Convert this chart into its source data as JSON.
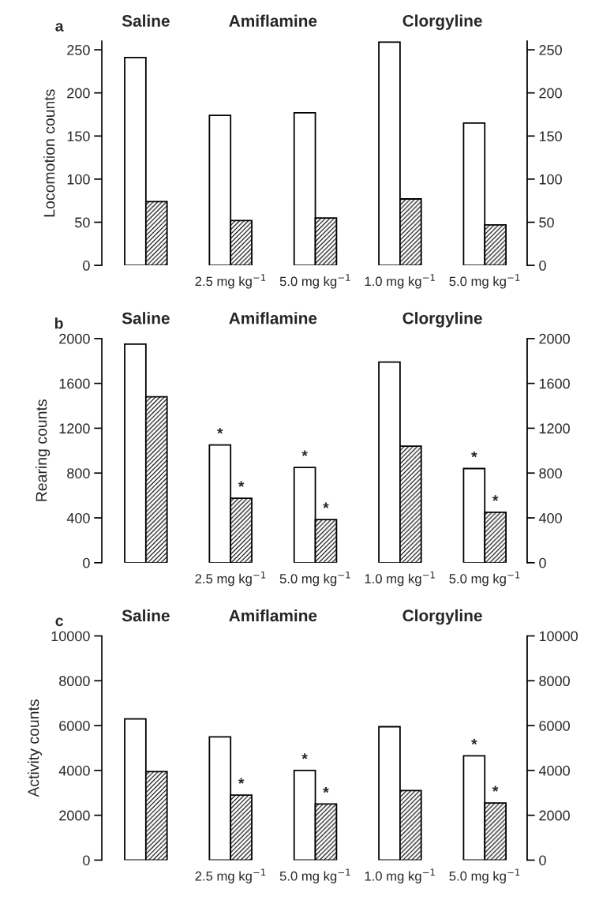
{
  "chart_data": [
    {
      "type": "bar",
      "title": "a",
      "ylabel": "Locomotion counts",
      "categories": [
        null,
        "2.5 mg kg$^{−1}$",
        "5.0 mg kg$^{−1}$",
        "1.0 mg kg$^{−1}$",
        "5.0 mg kg$^{−1}$"
      ],
      "series": [
        {
          "color": "#ffffff",
          "values": [
            241,
            174,
            177,
            259,
            165
          ]
        },
        {
          "color": "#000000",
          "values": [
            74,
            52,
            55,
            77,
            47
          ]
        }
      ],
      "ylim": [
        0,
        260
      ],
      "yticks": [
        0,
        50,
        100,
        150,
        200,
        250
      ],
      "y2lim": [
        0,
        260
      ],
      "y2ticks": [
        0,
        50,
        100,
        150,
        200,
        250
      ],
      "annotations": [
        "Saline",
        "Amiflamine",
        "Clorgyline"
      ]
    },
    {
      "type": "bar",
      "title": "b",
      "ylabel": "Rearing counts",
      "categories": [
        null,
        "2.5 mg kg$^{−1}$",
        "5.0 mg kg$^{−1}$",
        "1.0 mg kg$^{−1}$",
        "5.0 mg kg$^{−1}$"
      ],
      "series": [
        {
          "color": "#ffffff",
          "values": [
            1950,
            1050,
            850,
            1790,
            840
          ],
          "value_labels": [
            null,
            "*",
            "*",
            null,
            "*"
          ]
        },
        {
          "color": "#000000",
          "values": [
            1480,
            575,
            385,
            1040,
            450
          ],
          "value_labels": [
            null,
            "*",
            "*",
            null,
            "*"
          ]
        }
      ],
      "ylim": [
        0,
        2000
      ],
      "yticks": [
        0,
        400,
        800,
        1200,
        1600,
        2000
      ],
      "y2lim": [
        0,
        2000
      ],
      "y2ticks": [
        0,
        400,
        800,
        1200,
        1600,
        2000
      ],
      "annotations": [
        "Saline",
        "Amiflamine",
        "Clorgyline"
      ]
    },
    {
      "type": "bar",
      "title": "c",
      "ylabel": "Activity counts",
      "categories": [
        null,
        "2.5 mg kg$^{−1}$",
        "5.0 mg kg$^{−1}$",
        "1.0 mg kg$^{−1}$",
        "5.0 mg kg$^{−1}$"
      ],
      "series": [
        {
          "color": "#ffffff",
          "values": [
            6300,
            5500,
            4000,
            5950,
            4650
          ],
          "value_labels": [
            null,
            null,
            "*",
            null,
            "*"
          ]
        },
        {
          "color": "#000000",
          "values": [
            3950,
            2900,
            2500,
            3100,
            2550
          ],
          "value_labels": [
            null,
            "*",
            "*",
            null,
            "*"
          ]
        }
      ],
      "ylim": [
        0,
        10000
      ],
      "yticks": [
        0,
        2000,
        4000,
        6000,
        8000,
        10000
      ],
      "y2lim": [
        0,
        10000
      ],
      "y2ticks": [
        0,
        2000,
        4000,
        6000,
        8000,
        10000
      ],
      "annotations": [
        "Saline",
        "Amiflamine",
        "Clorgyline"
      ]
    }
  ]
}
